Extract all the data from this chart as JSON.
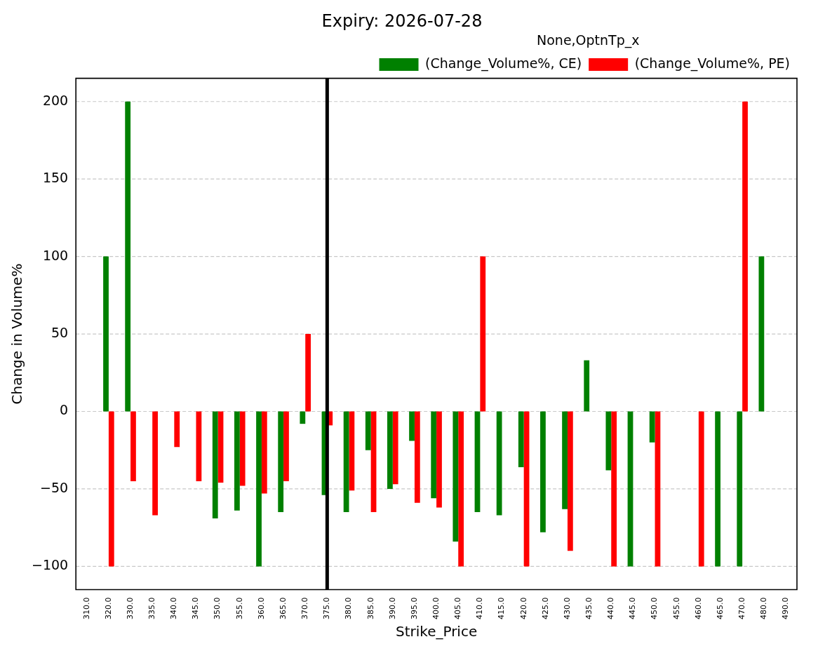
{
  "chart_data": {
    "type": "bar",
    "title": "Expiry: 2026-07-28",
    "xlabel": "Strike_Price",
    "ylabel": "Change in Volume%",
    "legend_title": "None,OptnTp_x",
    "categories": [
      "310.0",
      "320.0",
      "330.0",
      "335.0",
      "340.0",
      "345.0",
      "350.0",
      "355.0",
      "360.0",
      "365.0",
      "370.0",
      "375.0",
      "380.0",
      "385.0",
      "390.0",
      "395.0",
      "400.0",
      "405.0",
      "410.0",
      "415.0",
      "420.0",
      "425.0",
      "430.0",
      "435.0",
      "440.0",
      "445.0",
      "450.0",
      "455.0",
      "460.0",
      "465.0",
      "470.0",
      "480.0",
      "490.0"
    ],
    "series": [
      {
        "name": "(Change_Volume%, CE)",
        "color": "#008000",
        "values": [
          null,
          100,
          200,
          null,
          null,
          null,
          -69,
          -64,
          -100,
          -65,
          -8,
          -54,
          -65,
          -25,
          -50,
          -19,
          -56,
          -84,
          -65,
          -67,
          -36,
          -78,
          -63,
          33,
          -38,
          -100,
          -20,
          null,
          null,
          -100,
          -100,
          100,
          null
        ]
      },
      {
        "name": "(Change_Volume%, PE)",
        "color": "#ff0000",
        "values": [
          null,
          -100,
          -45,
          -67,
          -23,
          -45,
          -46,
          -48,
          -53,
          -45,
          50,
          -9,
          -51,
          -65,
          -47,
          -59,
          -62,
          -100,
          100,
          null,
          -100,
          null,
          -90,
          null,
          -100,
          null,
          -100,
          null,
          -100,
          null,
          200,
          null,
          null
        ]
      }
    ],
    "ylim": [
      -115,
      215
    ],
    "yticks": [
      {
        "value": -100,
        "label": "−100"
      },
      {
        "value": -50,
        "label": "−50"
      },
      0,
      50,
      100,
      150,
      200
    ],
    "ref_lines": [
      {
        "axis": "x",
        "value": "375.0",
        "color": "#000000"
      }
    ],
    "grid": "y",
    "legend": "top right"
  }
}
